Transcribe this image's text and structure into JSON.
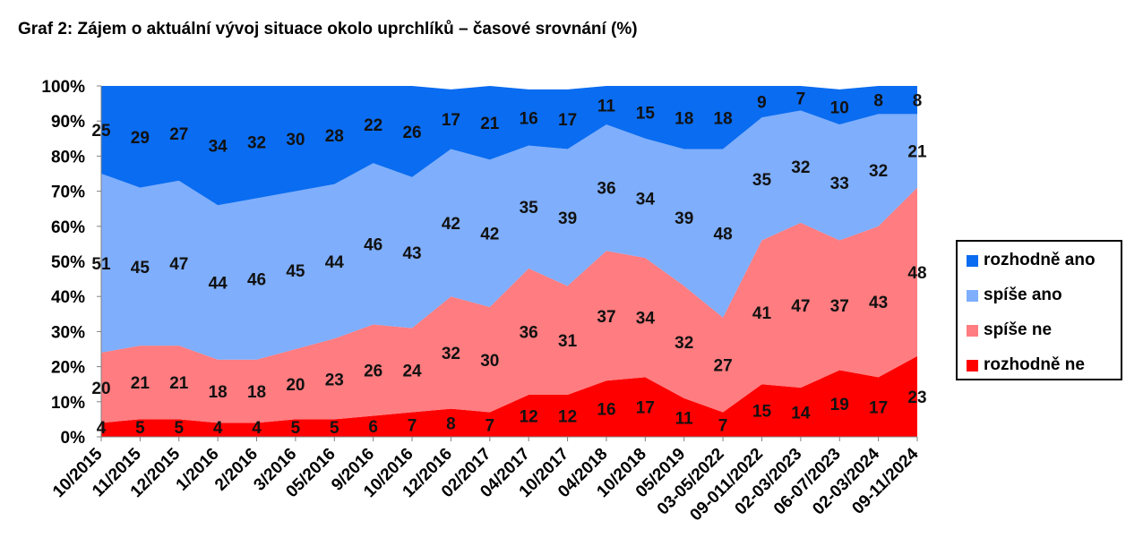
{
  "title": "Graf 2: Zájem o aktuální vývoj situace okolo uprchlíků – časové srovnání (%)",
  "chart_data": {
    "type": "area",
    "stacked": true,
    "title": "Graf 2: Zájem o aktuální vývoj situace okolo uprchlíků – časové srovnání (%)",
    "categories": [
      "10/2015",
      "11/2015",
      "12/2015",
      "1/2016",
      "2/2016",
      "3/2016",
      "05/2016",
      "9/2016",
      "10/2016",
      "12/2016",
      "02/2017",
      "04/2017",
      "10/2017",
      "04/2018",
      "10/2018",
      "05/2019",
      "03-05/2022",
      "09-011/2022",
      "02-03/2023",
      "06-07/2023",
      "02-03/2024",
      "09-11/2024"
    ],
    "y_ticks": [
      "0%",
      "10%",
      "20%",
      "30%",
      "40%",
      "50%",
      "60%",
      "70%",
      "80%",
      "90%",
      "100%"
    ],
    "ylim": [
      0,
      100
    ],
    "grid": false,
    "legend_position": "right",
    "series": [
      {
        "name": "rozhodně ne",
        "color": "#ff0000",
        "values": [
          4,
          5,
          5,
          4,
          4,
          5,
          5,
          6,
          7,
          8,
          7,
          12,
          12,
          16,
          17,
          11,
          7,
          15,
          14,
          19,
          17,
          23
        ]
      },
      {
        "name": "spíše ne",
        "color": "#ff7c80",
        "values": [
          20,
          21,
          21,
          18,
          18,
          20,
          23,
          26,
          24,
          32,
          30,
          36,
          31,
          37,
          34,
          32,
          27,
          41,
          47,
          37,
          43,
          48
        ]
      },
      {
        "name": "spíše ano",
        "color": "#7eaefc",
        "values": [
          51,
          45,
          47,
          44,
          46,
          45,
          44,
          46,
          43,
          42,
          42,
          35,
          39,
          36,
          34,
          39,
          48,
          35,
          32,
          33,
          32,
          21
        ]
      },
      {
        "name": "rozhodně ano",
        "color": "#0a6cf0",
        "values": [
          25,
          29,
          27,
          34,
          32,
          30,
          28,
          22,
          26,
          17,
          21,
          16,
          17,
          11,
          15,
          18,
          18,
          9,
          7,
          10,
          8,
          8
        ]
      }
    ]
  },
  "legend_items": [
    {
      "label": "rozhodně ano",
      "color": "#0a6cf0"
    },
    {
      "label": "spíše ano",
      "color": "#7eaefc"
    },
    {
      "label": "spíše ne",
      "color": "#ff7c80"
    },
    {
      "label": "rozhodně ne",
      "color": "#ff0000"
    }
  ]
}
